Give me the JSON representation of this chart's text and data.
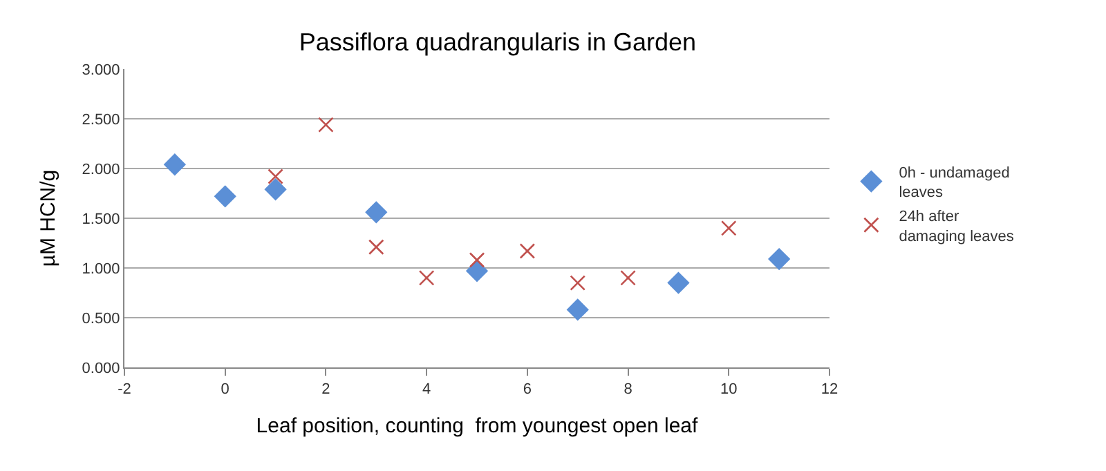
{
  "chart_data": {
    "type": "scatter",
    "title": "Passiflora quadrangularis in Garden",
    "xlabel": "Leaf position, counting  from youngest open leaf",
    "ylabel": "µM HCN/g",
    "xlim": [
      -2,
      12
    ],
    "xticks": [
      -2,
      0,
      2,
      4,
      6,
      8,
      10,
      12
    ],
    "ylim": [
      0,
      3
    ],
    "yticks": [
      {
        "value": 0,
        "label": "0.000"
      },
      {
        "value": 0.5,
        "label": "0.500"
      },
      {
        "value": 1,
        "label": "1.000"
      },
      {
        "value": 1.5,
        "label": "1.500"
      },
      {
        "value": 2,
        "label": "2.000"
      },
      {
        "value": 2.5,
        "label": "2.500"
      },
      {
        "value": 3,
        "label": "3.000"
      }
    ],
    "grid": "y",
    "legend": "right",
    "series": [
      {
        "name": "0h - undamaged leaves",
        "color": "#5b8fd6",
        "marker": "diamond",
        "x": [
          -1,
          0,
          1,
          3,
          5,
          7,
          9,
          11
        ],
        "values": [
          2.04,
          1.72,
          1.79,
          1.56,
          0.97,
          0.58,
          0.85,
          1.09
        ]
      },
      {
        "name": "24h after damaging leaves",
        "color": "#c0504d",
        "marker": "cross",
        "x": [
          1,
          2,
          3,
          4,
          5,
          6,
          7,
          8,
          10
        ],
        "values": [
          1.92,
          2.44,
          1.21,
          0.9,
          1.08,
          1.17,
          0.85,
          0.9,
          1.4
        ]
      }
    ]
  }
}
